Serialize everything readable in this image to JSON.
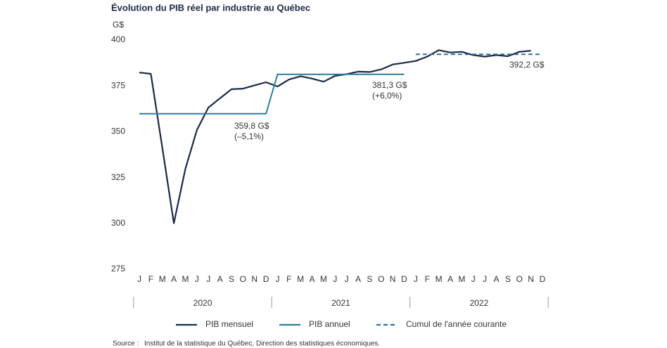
{
  "chart_data": {
    "type": "line",
    "title": "Évolution du PIB réel par industrie au Québec",
    "y_unit": "G$",
    "categories": [
      "J",
      "F",
      "M",
      "A",
      "M",
      "J",
      "J",
      "A",
      "S",
      "O",
      "N",
      "D",
      "J",
      "F",
      "M",
      "A",
      "M",
      "J",
      "J",
      "A",
      "S",
      "O",
      "N",
      "D",
      "J",
      "F",
      "M",
      "A",
      "M",
      "J",
      "J",
      "A",
      "S",
      "O",
      "N",
      "D"
    ],
    "groups": [
      "2020",
      "2021",
      "2022"
    ],
    "series": [
      {
        "name": "PIB mensuel",
        "color": "#1a2a45",
        "style": "solid",
        "values": [
          382.3,
          381.6,
          341.3,
          300.1,
          329.8,
          351,
          363.2,
          368.2,
          373.2,
          373.5,
          375.3,
          377,
          374.7,
          378.5,
          380.3,
          379,
          377.3,
          380.5,
          381.4,
          382.8,
          382.6,
          384,
          386.7,
          387.6,
          388.6,
          391,
          394.5,
          393.2,
          393.6,
          391.8,
          391,
          391.8,
          391.2,
          393.6,
          394.2,
          null
        ]
      },
      {
        "name": "PIB annuel",
        "color": "#2a7f9e",
        "style": "solid",
        "values": [
          359.8,
          359.8,
          359.8,
          359.8,
          359.8,
          359.8,
          359.8,
          359.8,
          359.8,
          359.8,
          359.8,
          359.8,
          381.3,
          381.3,
          381.3,
          381.3,
          381.3,
          381.3,
          381.3,
          381.3,
          381.3,
          381.3,
          381.3,
          381.3,
          null,
          null,
          null,
          null,
          null,
          null,
          null,
          null,
          null,
          null,
          null,
          null
        ]
      },
      {
        "name": "Cumul de l'année courante",
        "color": "#2f6ea5",
        "style": "dashed",
        "values": [
          null,
          null,
          null,
          null,
          null,
          null,
          null,
          null,
          null,
          null,
          null,
          null,
          null,
          null,
          null,
          null,
          null,
          null,
          null,
          null,
          null,
          null,
          null,
          null,
          392.2,
          392.2,
          392.2,
          392.2,
          392.2,
          392.2,
          392.2,
          392.2,
          392.2,
          392.2,
          392.2,
          392.2
        ]
      }
    ],
    "annotations": [
      [
        "359,8 G$",
        "(–5,1%)"
      ],
      [
        "381,3 G$",
        "(+6,0%)"
      ],
      [
        "392,2 G$"
      ]
    ],
    "ylim": [
      275,
      400
    ],
    "yticks": [
      275,
      300,
      325,
      350,
      375,
      400
    ],
    "grid": false,
    "legend": "bottom",
    "source_label": "Source :",
    "source": "Institut de la statistique du Québec, Direction des statistiques économiques."
  }
}
